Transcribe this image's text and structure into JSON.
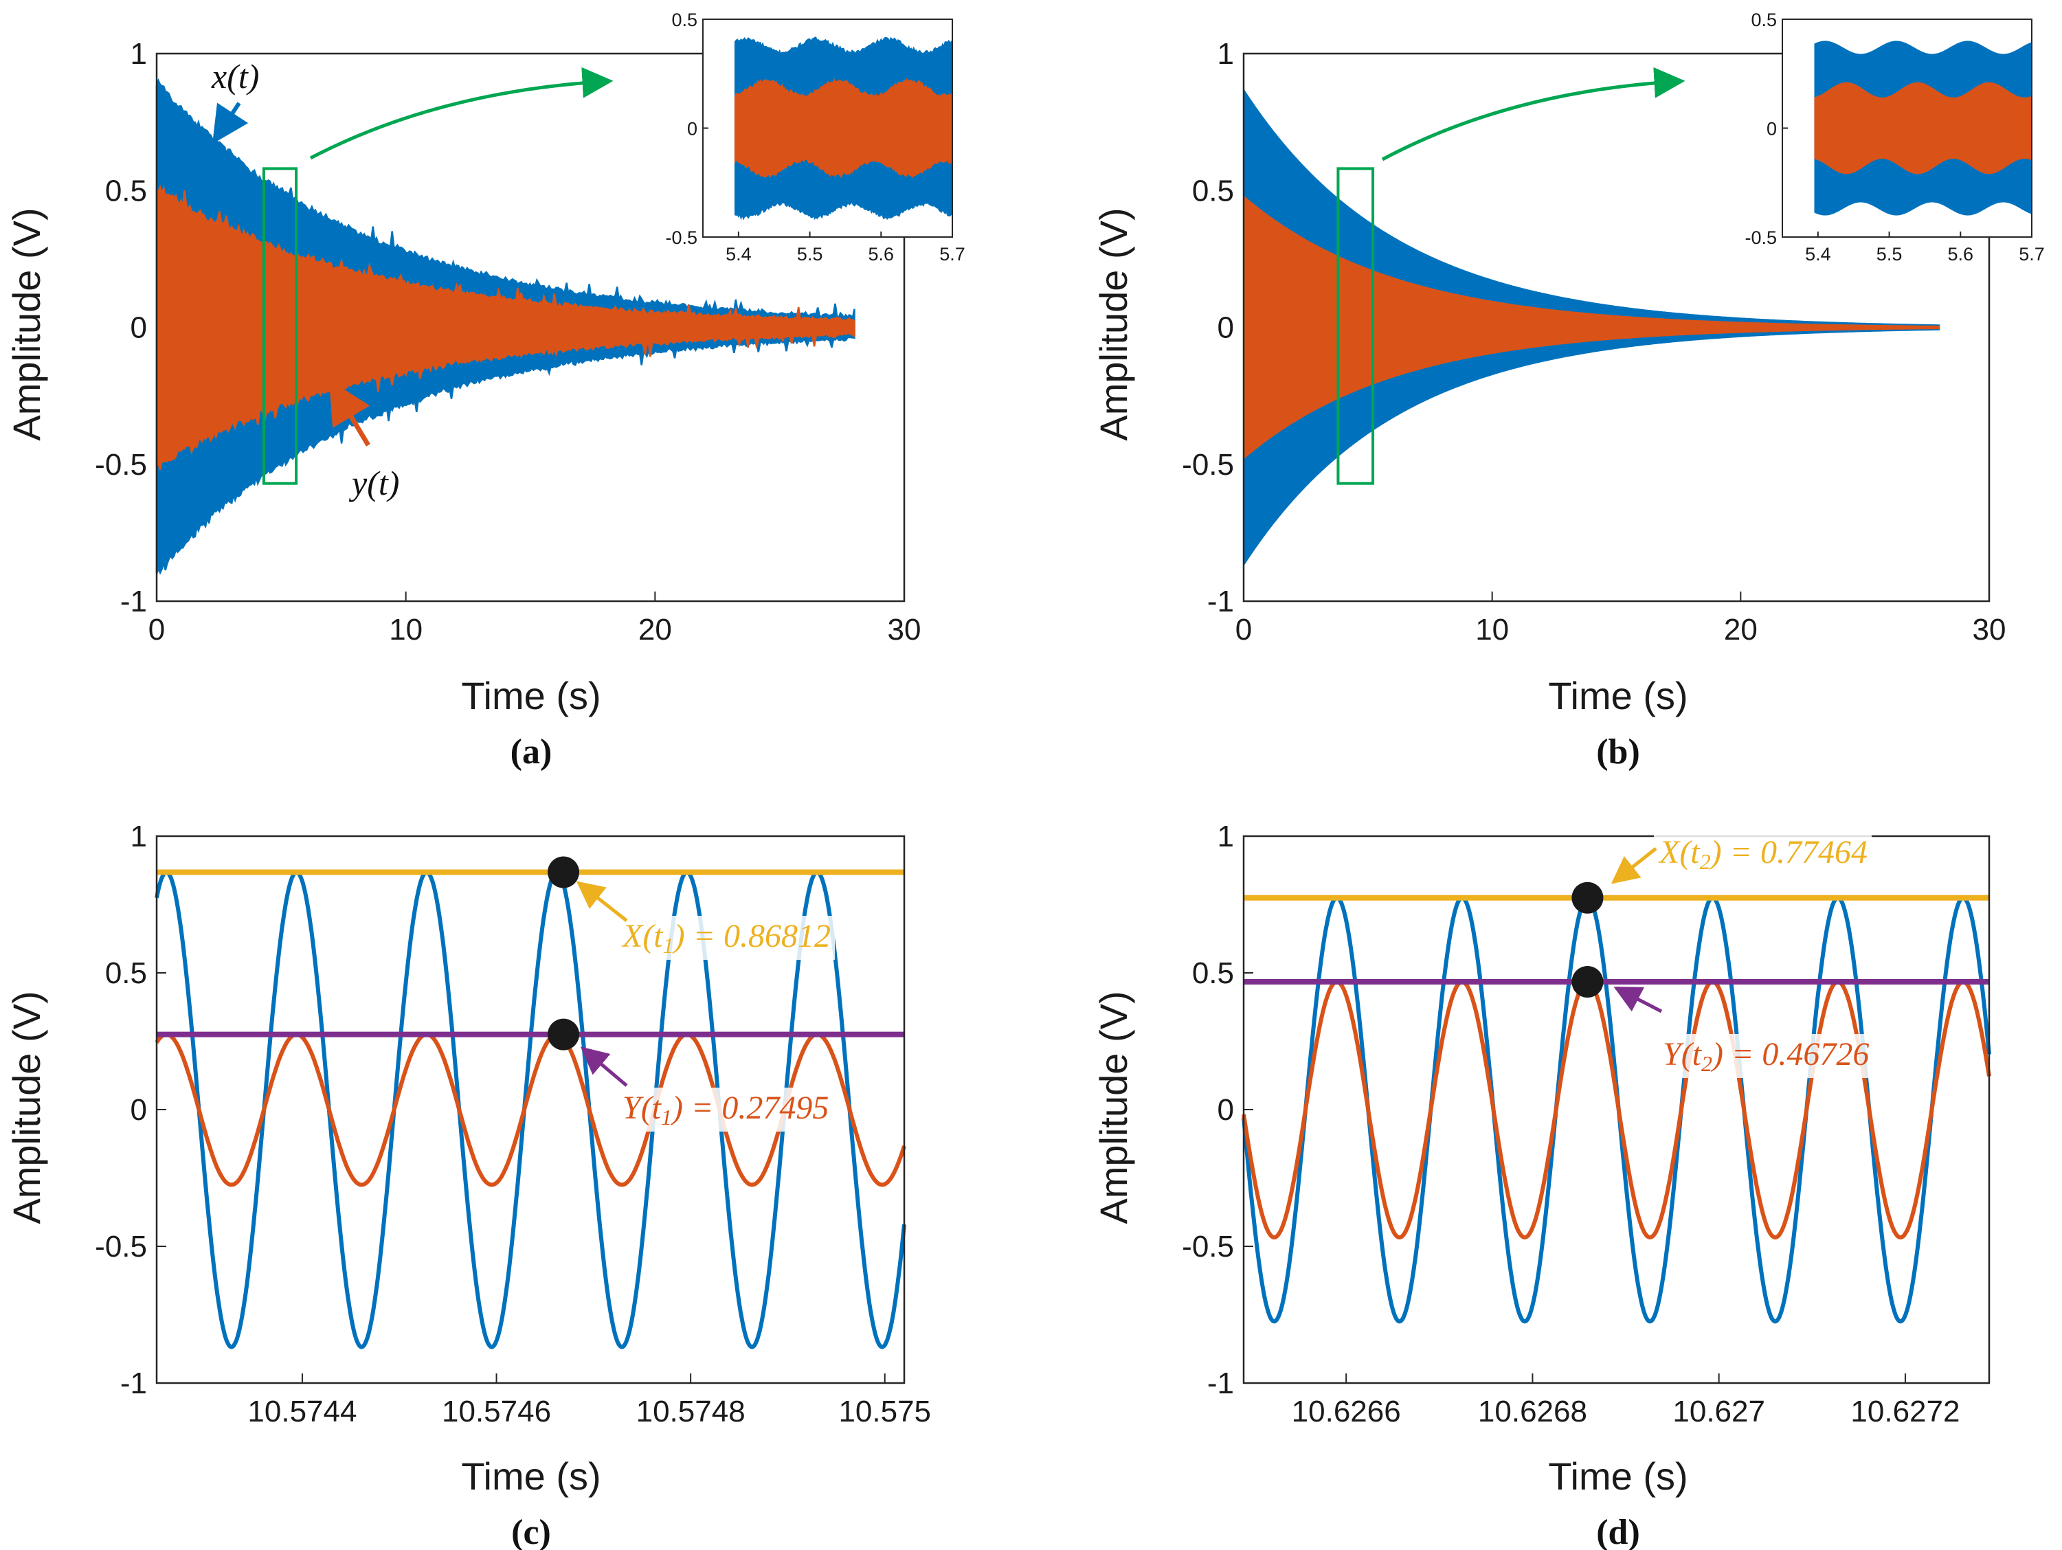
{
  "colors": {
    "x_series": "#0072BD",
    "y_series": "#D95319",
    "x_level": "#EDB120",
    "y_level": "#7E2F8E",
    "zoom_box": "#00A651",
    "marker": "#1a1a1a"
  },
  "chart_data": [
    {
      "id": "a",
      "type": "line",
      "caption": "a",
      "xlabel": "Time (s)",
      "ylabel": "Amplitude (V)",
      "xlim": [
        0,
        30
      ],
      "ylim": [
        -1,
        1
      ],
      "xticks": [
        "0",
        "10",
        "20",
        "30"
      ],
      "yticks": [
        "-1",
        "-0.5",
        "0",
        "0.5",
        "1"
      ],
      "signal_end_time": 28,
      "decay_time_constant": 8.2,
      "noisy": true,
      "series": [
        {
          "name": "x(t)",
          "initial_amplitude": 0.87
        },
        {
          "name": "y(t)",
          "initial_amplitude": 0.48
        }
      ],
      "labels": {
        "x": "x(t)",
        "y": "y(t)"
      },
      "zoom_box": {
        "x": [
          4.3,
          5.6
        ],
        "y": [
          -0.57,
          0.58
        ]
      },
      "inset": {
        "xlim": [
          5.35,
          5.7
        ],
        "ylim": [
          -0.5,
          0.5
        ],
        "xticks": [
          "5.4",
          "5.5",
          "5.6",
          "5.7"
        ],
        "yticks": [
          "-0.5",
          "0",
          "0.5"
        ],
        "x_amplitude_range": [
          0.34,
          0.4
        ],
        "y_amplitude_range": [
          0.14,
          0.21
        ],
        "beat_period": 0.1
      }
    },
    {
      "id": "b",
      "type": "line",
      "caption": "b",
      "xlabel": "Time (s)",
      "ylabel": "Amplitude (V)",
      "xlim": [
        0,
        30
      ],
      "ylim": [
        -1,
        1
      ],
      "xticks": [
        "0",
        "10",
        "20",
        "30"
      ],
      "yticks": [
        "-1",
        "-0.5",
        "0",
        "0.5",
        "1"
      ],
      "signal_end_time": 28,
      "decay_time_constant": 6.2,
      "noisy": false,
      "series": [
        {
          "name": "x(t)",
          "initial_amplitude": 0.87
        },
        {
          "name": "y(t)",
          "initial_amplitude": 0.48
        }
      ],
      "zoom_box": {
        "x": [
          3.8,
          5.2
        ],
        "y": [
          -0.57,
          0.58
        ]
      },
      "inset": {
        "xlim": [
          5.35,
          5.7
        ],
        "ylim": [
          -0.5,
          0.5
        ],
        "xticks": [
          "5.4",
          "5.5",
          "5.6",
          "5.7"
        ],
        "yticks": [
          "-0.5",
          "0",
          "0.5"
        ],
        "x_amplitude_range": [
          0.34,
          0.4
        ],
        "y_amplitude_range": [
          0.14,
          0.21
        ],
        "beat_period": 0.1
      }
    },
    {
      "id": "c",
      "type": "line",
      "caption": "c",
      "xlabel": "Time (s)",
      "ylabel": "Amplitude (V)",
      "xlim": [
        10.57425,
        10.57502
      ],
      "ylim": [
        -1,
        1
      ],
      "xticks": [
        {
          "value": 10.5744,
          "label": "10.5744"
        },
        {
          "value": 10.5746,
          "label": "10.5746"
        },
        {
          "value": 10.5748,
          "label": "10.5748"
        },
        {
          "value": 10.575,
          "label": "10.575"
        }
      ],
      "yticks": [
        "-1",
        "-0.5",
        "0",
        "0.5",
        "1"
      ],
      "frequency_hz": 7460,
      "first_peak_time": 10.57426,
      "series": [
        {
          "name": "x(t)",
          "amplitude": 0.86812
        },
        {
          "name": "y(t)",
          "amplitude": 0.27495
        }
      ],
      "marker_time": 10.574669,
      "levels": [
        {
          "name": "X(t1)",
          "value": 0.86812
        },
        {
          "name": "Y(t1)",
          "value": 0.27495
        }
      ],
      "annotations": {
        "X": {
          "prefix": "X(t",
          "sub": "1",
          "suffix": ") = 0.86812"
        },
        "Y": {
          "prefix": "Y(t",
          "sub": "1",
          "suffix": ") = 0.27495"
        }
      }
    },
    {
      "id": "d",
      "type": "line",
      "caption": "d",
      "xlabel": "Time (s)",
      "ylabel": "Amplitude (V)",
      "xlim": [
        10.62649,
        10.62729
      ],
      "ylim": [
        -1,
        1
      ],
      "xticks": [
        {
          "value": 10.6266,
          "label": "10.6266"
        },
        {
          "value": 10.6268,
          "label": "10.6268"
        },
        {
          "value": 10.627,
          "label": "10.627"
        },
        {
          "value": 10.6272,
          "label": "10.6272"
        }
      ],
      "yticks": [
        "-1",
        "-0.5",
        "0",
        "0.5",
        "1"
      ],
      "frequency_hz": 7440,
      "first_peak_time": 10.62659,
      "series": [
        {
          "name": "x(t)",
          "amplitude": 0.77464
        },
        {
          "name": "y(t)",
          "amplitude": 0.46726
        }
      ],
      "marker_time": 10.626859,
      "levels": [
        {
          "name": "X(t2)",
          "value": 0.77464
        },
        {
          "name": "Y(t2)",
          "value": 0.46726
        }
      ],
      "annotations": {
        "X": {
          "prefix": "X(t",
          "sub": "2",
          "suffix": ") = 0.77464"
        },
        "Y": {
          "prefix": "Y(t",
          "sub": "2",
          "suffix": ") = 0.46726"
        }
      }
    }
  ]
}
